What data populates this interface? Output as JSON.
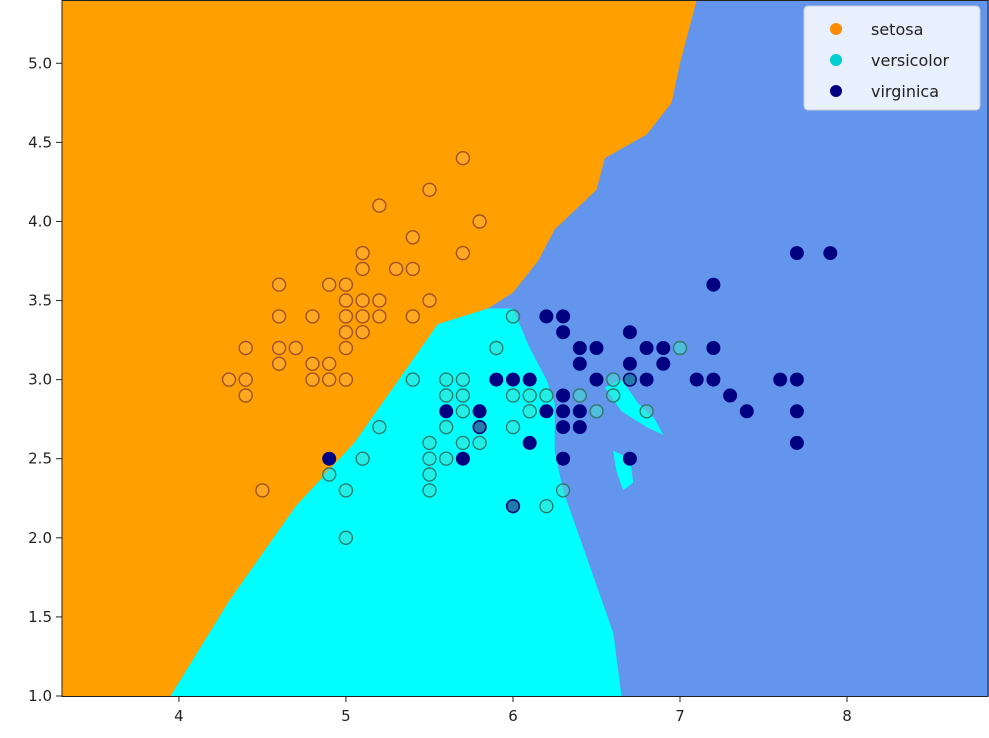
{
  "chart_data": {
    "type": "scatter",
    "title": "",
    "xlabel": "",
    "ylabel": "",
    "xlim": [
      3.3,
      8.85
    ],
    "ylim": [
      1.0,
      5.4
    ],
    "x_ticks": [
      "4",
      "5",
      "6",
      "7",
      "8"
    ],
    "y_ticks": [
      "1.0",
      "1.5",
      "2.0",
      "2.5",
      "3.0",
      "3.5",
      "4.0",
      "4.5",
      "5.0"
    ],
    "grid": false,
    "legend_position": "top-right",
    "decision_regions": [
      {
        "class": "setosa",
        "color": "#FFA000"
      },
      {
        "class": "versicolor",
        "color": "#00FFFF"
      },
      {
        "class": "virginica",
        "color": "#6495ED"
      }
    ],
    "series": [
      {
        "name": "setosa",
        "color": "#FF8C00",
        "points": [
          [
            4.3,
            3.0
          ],
          [
            4.4,
            3.0
          ],
          [
            4.4,
            2.9
          ],
          [
            4.4,
            3.2
          ],
          [
            4.5,
            2.3
          ],
          [
            4.6,
            3.6
          ],
          [
            4.6,
            3.4
          ],
          [
            4.6,
            3.2
          ],
          [
            4.6,
            3.1
          ],
          [
            4.7,
            3.2
          ],
          [
            4.8,
            3.4
          ],
          [
            4.8,
            3.1
          ],
          [
            4.8,
            3.0
          ],
          [
            4.9,
            3.6
          ],
          [
            4.9,
            3.1
          ],
          [
            4.9,
            3.0
          ],
          [
            5.0,
            3.6
          ],
          [
            5.0,
            3.5
          ],
          [
            5.0,
            3.4
          ],
          [
            5.0,
            3.3
          ],
          [
            5.0,
            3.2
          ],
          [
            5.0,
            3.0
          ],
          [
            5.1,
            3.8
          ],
          [
            5.1,
            3.7
          ],
          [
            5.1,
            3.5
          ],
          [
            5.1,
            3.4
          ],
          [
            5.1,
            3.3
          ],
          [
            5.2,
            4.1
          ],
          [
            5.2,
            3.5
          ],
          [
            5.2,
            3.4
          ],
          [
            5.3,
            3.7
          ],
          [
            5.4,
            3.9
          ],
          [
            5.4,
            3.7
          ],
          [
            5.4,
            3.4
          ],
          [
            5.5,
            4.2
          ],
          [
            5.5,
            3.5
          ],
          [
            5.7,
            4.4
          ],
          [
            5.7,
            3.8
          ],
          [
            5.8,
            4.0
          ]
        ]
      },
      {
        "name": "versicolor",
        "color": "#00CED1",
        "points": [
          [
            4.9,
            2.4
          ],
          [
            5.0,
            2.3
          ],
          [
            5.0,
            2.0
          ],
          [
            5.1,
            2.5
          ],
          [
            5.2,
            2.7
          ],
          [
            5.4,
            3.0
          ],
          [
            5.5,
            2.6
          ],
          [
            5.5,
            2.5
          ],
          [
            5.5,
            2.4
          ],
          [
            5.5,
            2.3
          ],
          [
            5.6,
            3.0
          ],
          [
            5.6,
            2.9
          ],
          [
            5.6,
            2.7
          ],
          [
            5.6,
            2.5
          ],
          [
            5.7,
            3.0
          ],
          [
            5.7,
            2.9
          ],
          [
            5.7,
            2.8
          ],
          [
            5.7,
            2.6
          ],
          [
            5.8,
            2.7
          ],
          [
            5.8,
            2.6
          ],
          [
            5.9,
            3.2
          ],
          [
            6.0,
            3.4
          ],
          [
            6.0,
            2.9
          ],
          [
            6.0,
            2.7
          ],
          [
            6.0,
            2.2
          ],
          [
            6.1,
            2.9
          ],
          [
            6.1,
            2.8
          ],
          [
            6.2,
            2.9
          ],
          [
            6.2,
            2.2
          ],
          [
            6.3,
            2.3
          ],
          [
            6.4,
            2.9
          ],
          [
            6.5,
            2.8
          ],
          [
            6.6,
            3.0
          ],
          [
            6.6,
            2.9
          ],
          [
            6.7,
            3.0
          ],
          [
            6.8,
            2.8
          ],
          [
            7.0,
            3.2
          ]
        ]
      },
      {
        "name": "virginica",
        "color": "#000080",
        "points": [
          [
            4.9,
            2.5
          ],
          [
            5.6,
            2.8
          ],
          [
            5.7,
            2.5
          ],
          [
            5.8,
            2.8
          ],
          [
            5.8,
            2.7
          ],
          [
            5.9,
            3.0
          ],
          [
            6.0,
            3.0
          ],
          [
            6.0,
            2.2
          ],
          [
            6.1,
            3.0
          ],
          [
            6.1,
            2.6
          ],
          [
            6.2,
            3.4
          ],
          [
            6.2,
            2.8
          ],
          [
            6.3,
            3.4
          ],
          [
            6.3,
            3.3
          ],
          [
            6.3,
            2.9
          ],
          [
            6.3,
            2.8
          ],
          [
            6.3,
            2.7
          ],
          [
            6.3,
            2.5
          ],
          [
            6.4,
            3.2
          ],
          [
            6.4,
            3.1
          ],
          [
            6.4,
            2.8
          ],
          [
            6.4,
            2.7
          ],
          [
            6.5,
            3.2
          ],
          [
            6.5,
            3.0
          ],
          [
            6.7,
            3.3
          ],
          [
            6.7,
            3.1
          ],
          [
            6.7,
            3.0
          ],
          [
            6.7,
            2.5
          ],
          [
            6.8,
            3.2
          ],
          [
            6.8,
            3.0
          ],
          [
            6.9,
            3.2
          ],
          [
            6.9,
            3.1
          ],
          [
            7.1,
            3.0
          ],
          [
            7.2,
            3.6
          ],
          [
            7.2,
            3.2
          ],
          [
            7.2,
            3.0
          ],
          [
            7.3,
            2.9
          ],
          [
            7.4,
            2.8
          ],
          [
            7.6,
            3.0
          ],
          [
            7.7,
            3.8
          ],
          [
            7.7,
            3.0
          ],
          [
            7.7,
            2.8
          ],
          [
            7.7,
            2.6
          ],
          [
            7.9,
            3.8
          ]
        ]
      }
    ],
    "legend": [
      {
        "label": "setosa",
        "color": "#FF8C00"
      },
      {
        "label": "versicolor",
        "color": "#00CED1"
      },
      {
        "label": "virginica",
        "color": "#000080"
      }
    ]
  }
}
